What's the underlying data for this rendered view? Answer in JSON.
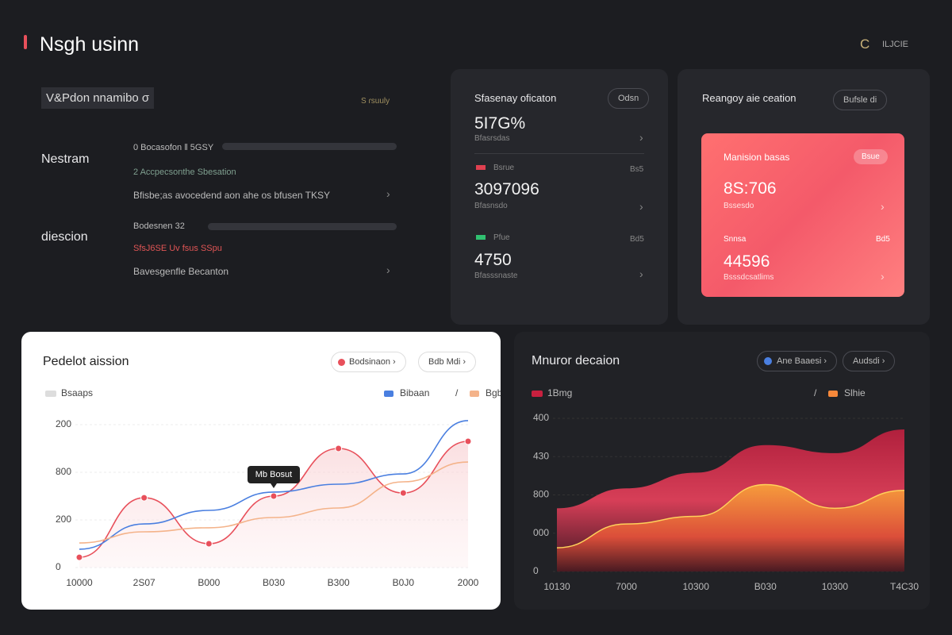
{
  "header": {
    "title": "Nsgh usinn",
    "icon_label": "C",
    "action": "ILJCIE"
  },
  "left_panel": {
    "title": "V&Pdon nnamibo σ",
    "badge": "S ɾsuuly",
    "sections": [
      {
        "label": "Nestram",
        "items": [
          "0 Bocasofon ǁ 5GSY",
          "2 Accpecsonthe Sbesation",
          "Bfisbe;as avocedend aon ahe os bfusen TKSY"
        ]
      },
      {
        "label": "diescion",
        "items": [
          "Bodesnen 32",
          "SfsJ6SE Uv fsus SSpu",
          "Bavesgenfle Becanton"
        ]
      }
    ]
  },
  "stats_card": {
    "title": "Sfasenay oficaton",
    "button": "Odsn",
    "rows": [
      {
        "value": "5I7G%",
        "caption": "Bfasrsdas"
      },
      {
        "label": "Bsrue",
        "side": "Bs5",
        "value": "3097096",
        "caption": "Bfasnsdo"
      },
      {
        "label": "Pfue",
        "side": "Bd5",
        "value": "4750",
        "caption": "Bfasssnaste"
      }
    ]
  },
  "highlight_card": {
    "title": "Reangoy aie ceation",
    "button": "Bufsle di",
    "inner_title": "Manision basas",
    "pill": "Bsue",
    "rows": [
      {
        "value": "8S:706",
        "caption": "Bssesdo"
      },
      {
        "label": "Snnsa",
        "side": "Bd5",
        "value": "44596",
        "caption": "Bsssdcsatlims"
      }
    ]
  },
  "chart_data": [
    {
      "type": "line",
      "title": "Pedelot aission",
      "buttons": [
        "Bodsinaon",
        "Bdb Mdi"
      ],
      "annotation": "Mb Bosut",
      "legend_separator": "/",
      "categories": [
        "10000",
        "2S07",
        "B000",
        "B030",
        "B300",
        "B0J0",
        "2000"
      ],
      "series": [
        {
          "name": "Bsaaps",
          "color": "#e8505b",
          "markers": true,
          "values": [
            43,
            293,
            100,
            300,
            500,
            313,
            530
          ]
        },
        {
          "name": "Bibaan",
          "color": "#4a7fe0",
          "values": [
            77,
            183,
            240,
            317,
            350,
            393,
            617
          ]
        },
        {
          "name": "Bgbae",
          "color": "#f4b38a",
          "values": [
            103,
            150,
            167,
            210,
            250,
            360,
            443
          ]
        }
      ],
      "ylim": [
        0,
        640
      ],
      "yticks": [
        0,
        200,
        {
          "value": 400,
          "label": "800"
        },
        {
          "value": 600,
          "label": "200"
        }
      ],
      "grid": true
    },
    {
      "type": "area",
      "title": "Mnuror decaion",
      "buttons": [
        "Ane Baaesi",
        "Audsdi"
      ],
      "legend_separator": "/",
      "categories": [
        "10130",
        "7000",
        "10300",
        "B030",
        "10300",
        "T4C30"
      ],
      "series": [
        {
          "name": "1Bmg",
          "color": "#c8203f",
          "values": [
            1650,
            2170,
            2580,
            3300,
            3090,
            3710
          ]
        },
        {
          "name": "Slhie",
          "color": "#f6883a",
          "values": [
            620,
            1240,
            1440,
            2270,
            1650,
            2120
          ]
        }
      ],
      "ylim": [
        0,
        4000
      ],
      "yticks": [
        0,
        {
          "value": 1000,
          "label": "000"
        },
        {
          "value": 2000,
          "label": "800"
        },
        {
          "value": 3000,
          "label": "430"
        },
        {
          "value": 4000,
          "label": "400"
        }
      ],
      "grid": true
    }
  ]
}
